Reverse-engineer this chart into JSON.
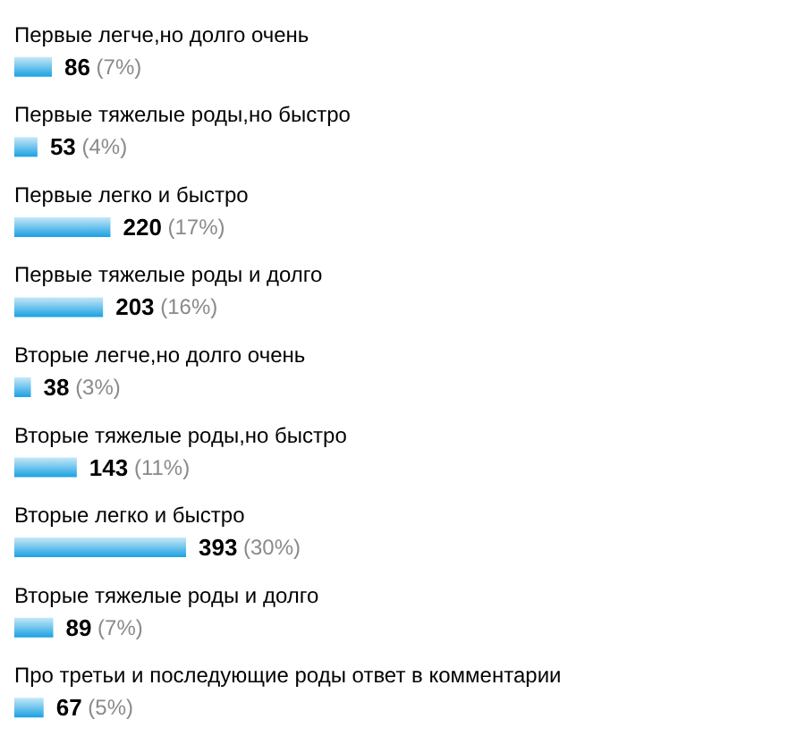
{
  "chart_data": {
    "type": "bar",
    "orientation": "horizontal",
    "categories": [
      "Первые легче,но долго очень",
      "Первые тяжелые роды,но быстро",
      "Первые легко и быстро",
      "Первые тяжелые роды и долго",
      "Вторые легче,но долго очень",
      "Вторые тяжелые роды,но быстро",
      "Вторые легко и быстро",
      "Вторые тяжелые роды и долго",
      "Про третьи и последующие роды ответ в комментарии"
    ],
    "values": [
      86,
      53,
      220,
      203,
      38,
      143,
      393,
      89,
      67
    ],
    "value_labels": [
      "86 (7%)",
      "53 (4%)",
      "220 (17%)",
      "203 (16%)",
      "38 (3%)",
      "143 (11%)",
      "393 (30%)",
      "89 (7%)",
      "67 (5%)"
    ],
    "color": "#1ba1e2",
    "tick_labels": "y"
  }
}
